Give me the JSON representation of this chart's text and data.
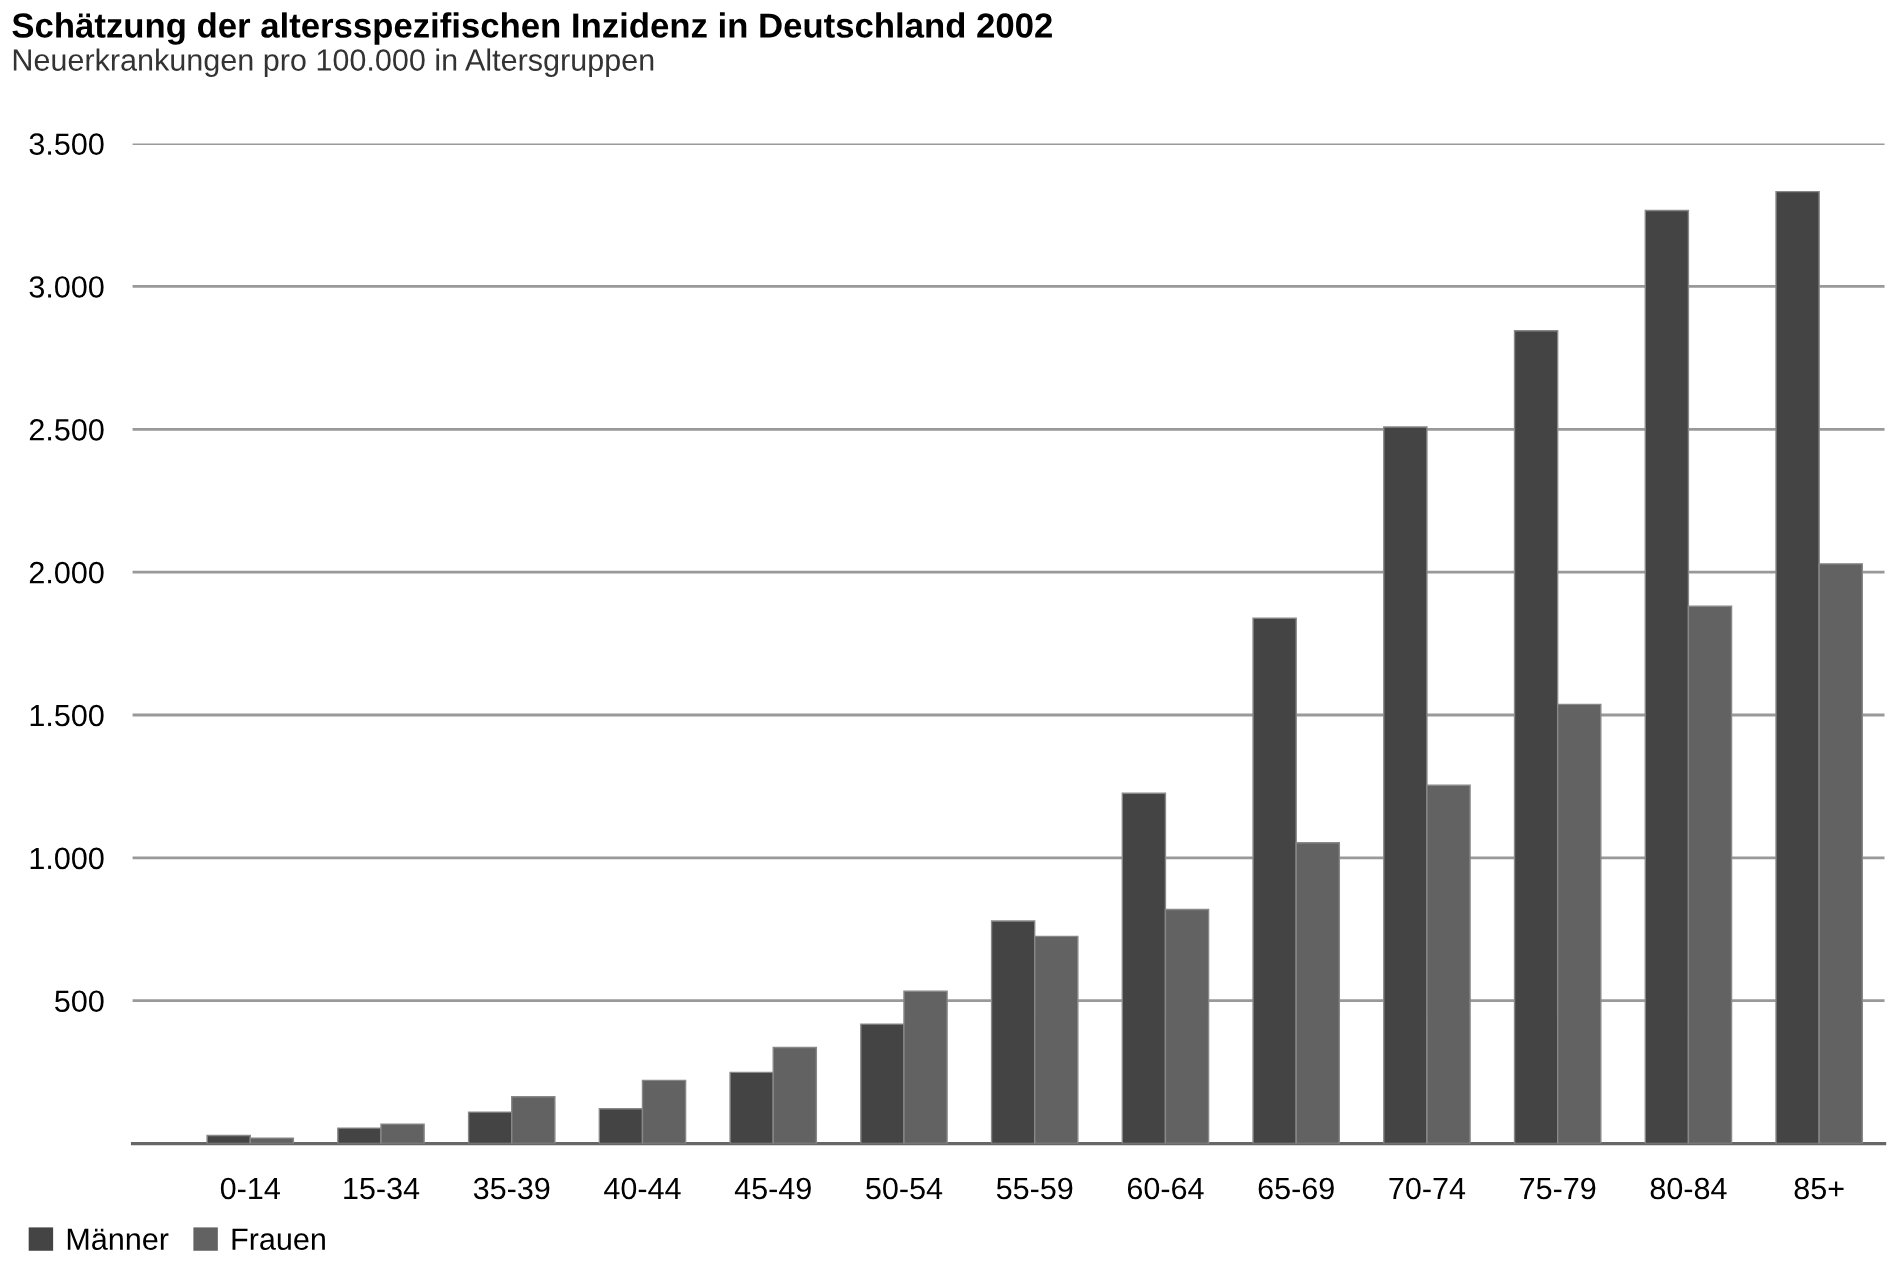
{
  "chart_data": {
    "type": "bar",
    "title": "Schätzung der altersspezifischen Inzidenz in Deutschland 2002",
    "subtitle": "Neuerkrankungen pro 100.000 in Altersgruppen",
    "categories": [
      "0-14",
      "15-34",
      "35-39",
      "40-44",
      "45-49",
      "50-54",
      "55-59",
      "60-64",
      "65-69",
      "70-74",
      "75-79",
      "80-84",
      "85+"
    ],
    "series": [
      {
        "name": "Männer",
        "color": "#444444",
        "values": [
          28,
          54,
          110,
          122,
          249,
          418,
          779,
          1226,
          1839,
          2508,
          2845,
          3266,
          3332
        ]
      },
      {
        "name": "Frauen",
        "color": "#626262",
        "values": [
          19,
          68,
          164,
          221,
          336,
          533,
          725,
          819,
          1053,
          1254,
          1537,
          1881,
          2029
        ]
      }
    ],
    "ylim": [
      0,
      3500
    ],
    "yticks": [
      {
        "value": 0,
        "label": null
      },
      {
        "value": 500,
        "label": "500"
      },
      {
        "value": 1000,
        "label": "1.000"
      },
      {
        "value": 1500,
        "label": "1.500"
      },
      {
        "value": 2000,
        "label": "2.000"
      },
      {
        "value": 2500,
        "label": "2.500"
      },
      {
        "value": 3000,
        "label": "3.000"
      },
      {
        "value": 3500,
        "label": "3.500"
      }
    ],
    "grid": "y",
    "legend": "bottom left"
  }
}
